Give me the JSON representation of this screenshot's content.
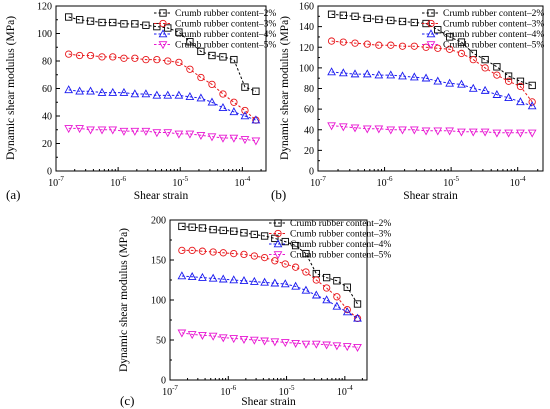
{
  "figure": {
    "colors": {
      "black": "#000000",
      "red": "#e8171b",
      "blue": "#1a1af0",
      "magenta": "#e816d2"
    }
  },
  "chart_data": [
    {
      "panel": "(a)",
      "type": "line",
      "xscale": "log",
      "xlabel": "Shear strain",
      "ylabel": "Dynamic shear modulus (MPa)",
      "xlim": [
        1e-07,
        0.00024
      ],
      "ylim": [
        0,
        120
      ],
      "yticks": [
        0,
        20,
        40,
        60,
        80,
        100,
        120
      ],
      "xticks": [
        1e-07,
        1e-06,
        1e-05,
        0.0001
      ],
      "xtick_labels": [
        {
          "base": "10",
          "exp": "-7"
        },
        {
          "base": "10",
          "exp": "-6"
        },
        {
          "base": "10",
          "exp": "-5"
        },
        {
          "base": "10",
          "exp": "-4"
        }
      ],
      "legend_position": "top-right",
      "x": [
        1.6e-07,
        2.4e-07,
        3.6e-07,
        5.5e-07,
        8.2e-07,
        1.24e-06,
        1.86e-06,
        2.8e-06,
        4.2e-06,
        6.3e-06,
        9.5e-06,
        1.43e-05,
        2.15e-05,
        3.24e-05,
        4.87e-05,
        7.3e-05,
        0.00011,
        0.000165
      ],
      "series": [
        {
          "name": "Crumb rubber content–2%",
          "color": "#000000",
          "marker": "square",
          "values": [
            112,
            110,
            109,
            108,
            108,
            107,
            107,
            106,
            105,
            104,
            101,
            94,
            87,
            84,
            83,
            81,
            61,
            58
          ]
        },
        {
          "name": "Crumb rubber content–3%",
          "color": "#e8171b",
          "marker": "circle",
          "values": [
            85,
            84,
            84,
            83,
            83,
            82,
            82,
            81,
            81,
            80,
            79,
            74,
            68,
            63,
            56,
            50,
            44,
            37
          ]
        },
        {
          "name": "Crumb rubber content–4%",
          "color": "#1a1af0",
          "marker": "triangle-up",
          "values": [
            59,
            58,
            58,
            57,
            57,
            57,
            56,
            56,
            55,
            55,
            55,
            54,
            53,
            50,
            46,
            43,
            40,
            37
          ]
        },
        {
          "name": "Crumb rubber content–5%",
          "color": "#e816d2",
          "marker": "triangle-down",
          "values": [
            31,
            31,
            30,
            30,
            30,
            29,
            29,
            29,
            28,
            28,
            27,
            27,
            26,
            25,
            24,
            24,
            23,
            22
          ]
        }
      ]
    },
    {
      "panel": "(b)",
      "type": "line",
      "xscale": "log",
      "xlabel": "Shear strain",
      "ylabel": "Dynamic shear modulus (MPa)",
      "xlim": [
        1e-07,
        0.00024
      ],
      "ylim": [
        0,
        160
      ],
      "yticks": [
        0,
        20,
        40,
        60,
        80,
        100,
        120,
        140,
        160
      ],
      "xticks": [
        1e-07,
        1e-06,
        1e-05,
        0.0001
      ],
      "xtick_labels": [
        {
          "base": "10",
          "exp": "-7"
        },
        {
          "base": "10",
          "exp": "-6"
        },
        {
          "base": "10",
          "exp": "-5"
        },
        {
          "base": "10",
          "exp": "-4"
        }
      ],
      "legend_position": "top-right",
      "x": [
        1.6e-07,
        2.4e-07,
        3.6e-07,
        5.5e-07,
        8.2e-07,
        1.24e-06,
        1.86e-06,
        2.8e-06,
        4.2e-06,
        6.3e-06,
        9.5e-06,
        1.43e-05,
        2.15e-05,
        3.24e-05,
        4.87e-05,
        7.3e-05,
        0.00011,
        0.000165
      ],
      "series": [
        {
          "name": "Crumb rubber content–2%",
          "color": "#000000",
          "marker": "square",
          "values": [
            152,
            151,
            150,
            148,
            147,
            146,
            145,
            144,
            143,
            137,
            130,
            125,
            114,
            108,
            101,
            92,
            87,
            83
          ]
        },
        {
          "name": "Crumb rubber content–3%",
          "color": "#e8171b",
          "marker": "circle",
          "values": [
            126,
            125,
            124,
            123,
            122,
            122,
            121,
            121,
            120,
            119,
            118,
            114,
            108,
            100,
            93,
            87,
            82,
            67
          ]
        },
        {
          "name": "Crumb rubber content–4%",
          "color": "#1a1af0",
          "marker": "triangle-up",
          "values": [
            96,
            95,
            94,
            94,
            93,
            93,
            92,
            91,
            90,
            87,
            85,
            84,
            80,
            78,
            74,
            71,
            67,
            63
          ]
        },
        {
          "name": "Crumb rubber content–5%",
          "color": "#e816d2",
          "marker": "triangle-down",
          "values": [
            44,
            43,
            42,
            41,
            41,
            40,
            40,
            40,
            39,
            39,
            39,
            38,
            38,
            38,
            37,
            37,
            37,
            37
          ]
        }
      ]
    },
    {
      "panel": "(c)",
      "type": "line",
      "xscale": "log",
      "xlabel": "Shear strain",
      "ylabel": "Dynamic shear modulus (MPa)",
      "xlim": [
        1e-07,
        0.00024
      ],
      "ylim": [
        0,
        200
      ],
      "yticks": [
        0,
        50,
        100,
        150,
        200
      ],
      "xticks": [
        1e-07,
        1e-06,
        1e-05,
        0.0001
      ],
      "xtick_labels": [
        {
          "base": "10",
          "exp": "-7"
        },
        {
          "base": "10",
          "exp": "-6"
        },
        {
          "base": "10",
          "exp": "-5"
        },
        {
          "base": "10",
          "exp": "-4"
        }
      ],
      "legend_position": "top-right",
      "x": [
        1.6e-07,
        2.4e-07,
        3.6e-07,
        5.5e-07,
        8.2e-07,
        1.24e-06,
        1.86e-06,
        2.8e-06,
        4.2e-06,
        6.3e-06,
        9.5e-06,
        1.43e-05,
        2.15e-05,
        3.24e-05,
        4.87e-05,
        7.3e-05,
        0.00011,
        0.000165
      ],
      "series": [
        {
          "name": "Crumb rubber content–2%",
          "color": "#000000",
          "marker": "square",
          "values": [
            192,
            191,
            190,
            188,
            187,
            186,
            184,
            182,
            180,
            177,
            173,
            168,
            158,
            133,
            128,
            124,
            116,
            95
          ]
        },
        {
          "name": "Crumb rubber content–3%",
          "color": "#e8171b",
          "marker": "circle",
          "values": [
            162,
            162,
            161,
            160,
            159,
            158,
            157,
            155,
            153,
            149,
            145,
            141,
            135,
            125,
            115,
            104,
            88,
            77
          ]
        },
        {
          "name": "Crumb rubber content–4%",
          "color": "#1a1af0",
          "marker": "triangle-up",
          "values": [
            130,
            129,
            128,
            127,
            126,
            125,
            124,
            123,
            122,
            121,
            120,
            117,
            112,
            106,
            100,
            92,
            85,
            77
          ]
        },
        {
          "name": "Crumb rubber content–5%",
          "color": "#e816d2",
          "marker": "triangle-down",
          "values": [
            59,
            57,
            56,
            55,
            53,
            52,
            51,
            50,
            49,
            48,
            47,
            46,
            45,
            45,
            44,
            43,
            42,
            41
          ]
        }
      ]
    }
  ]
}
